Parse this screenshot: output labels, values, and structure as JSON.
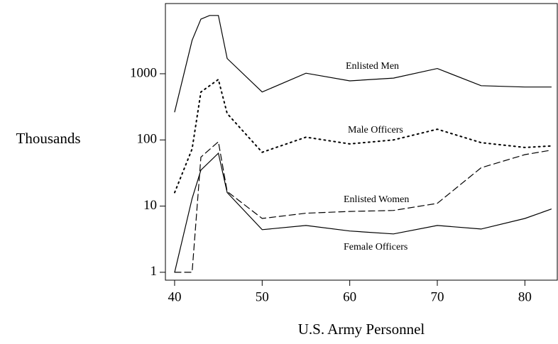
{
  "chart_data": {
    "type": "line",
    "xlabel": "U.S. Army Personnel",
    "ylabel": "Thousands",
    "xlim": [
      38.95,
      83.7
    ],
    "xticks": [
      40,
      50,
      60,
      70,
      80
    ],
    "ylim": [
      0.76,
      11500
    ],
    "yticks": [
      1,
      10,
      100,
      1000
    ],
    "yscale": "log",
    "series": [
      {
        "name": "Enlisted Men",
        "color": "#000000",
        "dash": "solid",
        "x": [
          40,
          42,
          43,
          44,
          45,
          46,
          50,
          55,
          60,
          65,
          70,
          75,
          80,
          83
        ],
        "values": [
          265,
          3200,
          6700,
          7600,
          7600,
          1700,
          530,
          1020,
          780,
          860,
          1200,
          660,
          630,
          630
        ]
      },
      {
        "name": "Male Officers",
        "color": "#000000",
        "dash": "dotted",
        "x": [
          40,
          42,
          43,
          45,
          46,
          50,
          55,
          60,
          65,
          70,
          75,
          80,
          83
        ],
        "values": [
          16,
          73,
          530,
          820,
          250,
          65,
          110,
          87,
          100,
          145,
          91,
          77,
          81
        ]
      },
      {
        "name": "Enlisted Women",
        "color": "#000000",
        "dash": "dashed",
        "x": [
          40,
          42,
          43,
          45,
          46,
          50,
          55,
          60,
          65,
          70,
          75,
          80,
          83
        ],
        "values": [
          1,
          1,
          55,
          94,
          16.6,
          6.5,
          7.8,
          8.3,
          8.6,
          11,
          38,
          60,
          70
        ]
      },
      {
        "name": "Female Officers",
        "color": "#000000",
        "dash": "solid",
        "x": [
          40,
          42,
          43,
          45,
          46,
          50,
          55,
          60,
          65,
          70,
          75,
          80,
          83
        ],
        "values": [
          1,
          13,
          35,
          63,
          16,
          4.4,
          5.1,
          4.2,
          3.8,
          5.1,
          4.5,
          6.5,
          9
        ]
      }
    ]
  }
}
